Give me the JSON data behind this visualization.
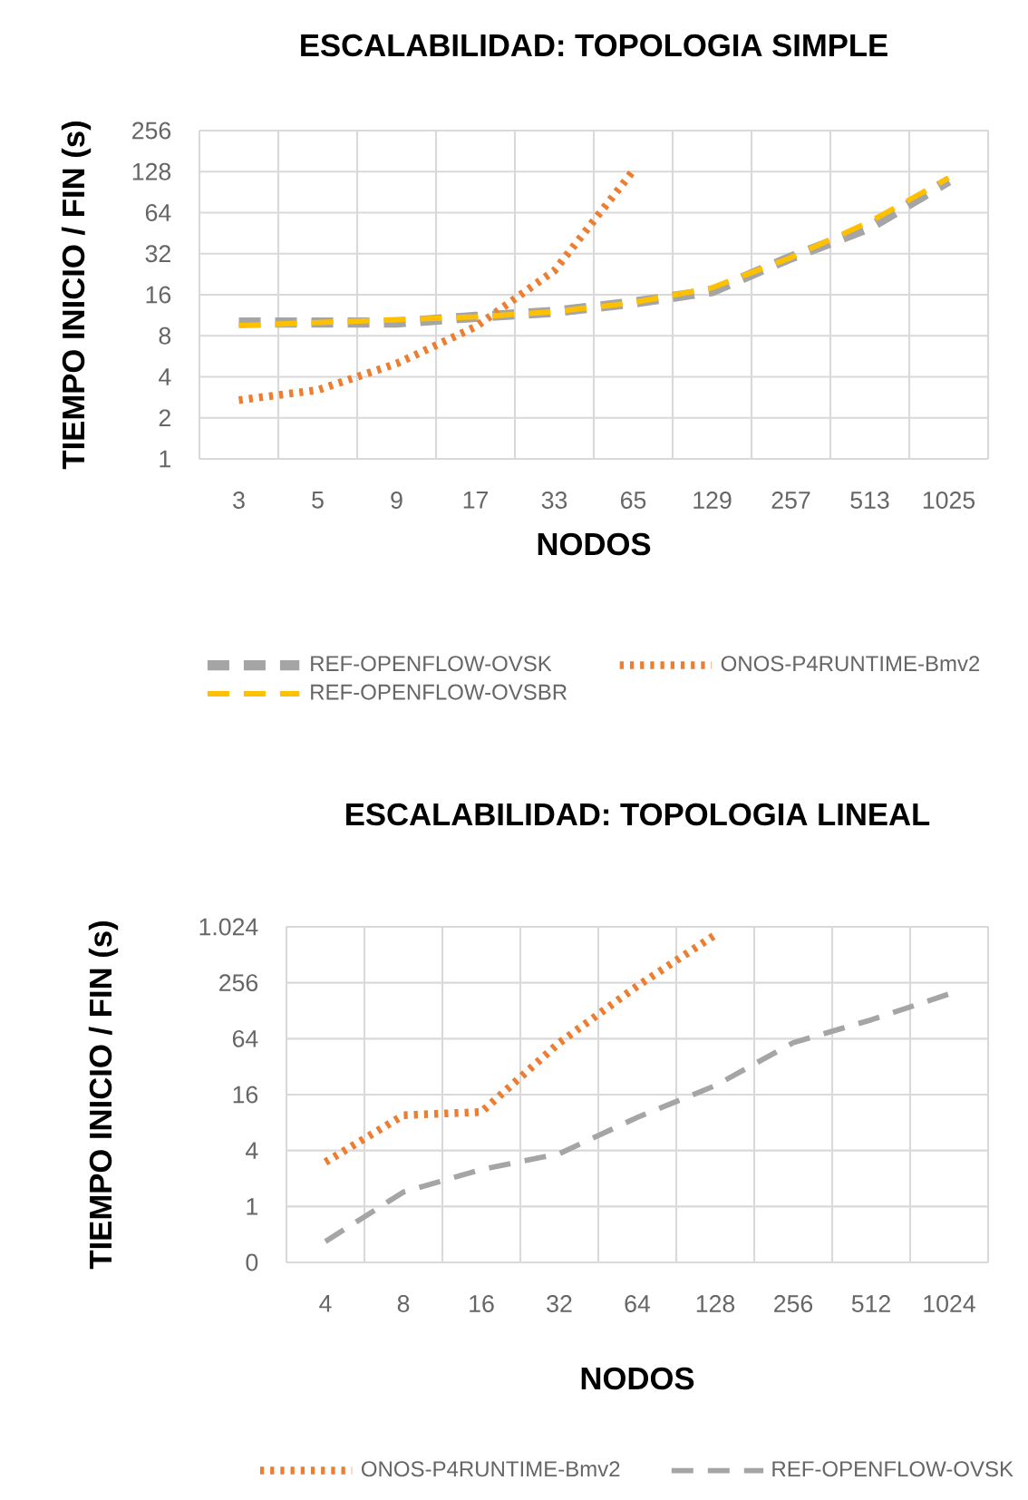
{
  "chart_data": [
    {
      "type": "line",
      "title": "ESCALABILIDAD:  TOPOLOGIA SIMPLE",
      "xlabel": "NODOS",
      "ylabel": "TIEMPO INICIO / FIN (s)",
      "log": "y",
      "grid": true,
      "legend": "bottom",
      "categories": [
        "3",
        "5",
        "9",
        "17",
        "33",
        "65",
        "129",
        "257",
        "513",
        "1025"
      ],
      "ylim": [
        1,
        256
      ],
      "yticks": [
        1,
        2,
        4,
        8,
        16,
        32,
        64,
        128,
        256
      ],
      "series": [
        {
          "name": "REF-OPENFLOW-OVSK",
          "color": "#a5a5a5",
          "line_style": "dashed",
          "values": [
            10,
            10,
            10,
            11,
            12,
            14,
            17,
            30,
            50,
            110
          ]
        },
        {
          "name": "ONOS-P4RUNTIME-Bmv2",
          "color": "#ed7d31",
          "line_style": "dotted",
          "values": [
            2.7,
            3.2,
            5,
            9.3,
            24,
            130,
            null,
            null,
            null,
            null
          ]
        },
        {
          "name": "REF-OPENFLOW-OVSBR",
          "color": "#ffc000",
          "line_style": "dashed",
          "values": [
            9.5,
            10,
            10.5,
            11,
            12,
            14,
            18,
            30,
            55,
            115
          ]
        }
      ]
    },
    {
      "type": "line",
      "title": "ESCALABILIDAD:  TOPOLOGIA LINEAL",
      "xlabel": "NODOS",
      "ylabel": "TIEMPO INICIO / FIN (s)",
      "log": "y",
      "grid": true,
      "legend": "bottom",
      "categories": [
        "4",
        "8",
        "16",
        "32",
        "64",
        "128",
        "256",
        "512",
        "1024"
      ],
      "ylim": [
        0.25,
        1024
      ],
      "yticks": [
        {
          "value": 0.25,
          "label": "0"
        },
        1,
        4,
        16,
        64,
        256,
        {
          "value": 1024,
          "label": "1.024"
        }
      ],
      "series": [
        {
          "name": "ONOS-P4RUNTIME-Bmv2",
          "color": "#ed7d31",
          "line_style": "dotted",
          "values": [
            3,
            9.6,
            10.4,
            58,
            236,
            840,
            null,
            null,
            null
          ]
        },
        {
          "name": "REF-OPENFLOW-OVSK",
          "color": "#a5a5a5",
          "line_style": "dashed",
          "values": [
            0.42,
            1.43,
            2.5,
            3.7,
            9.1,
            20,
            58,
            102,
            194
          ]
        }
      ]
    }
  ]
}
